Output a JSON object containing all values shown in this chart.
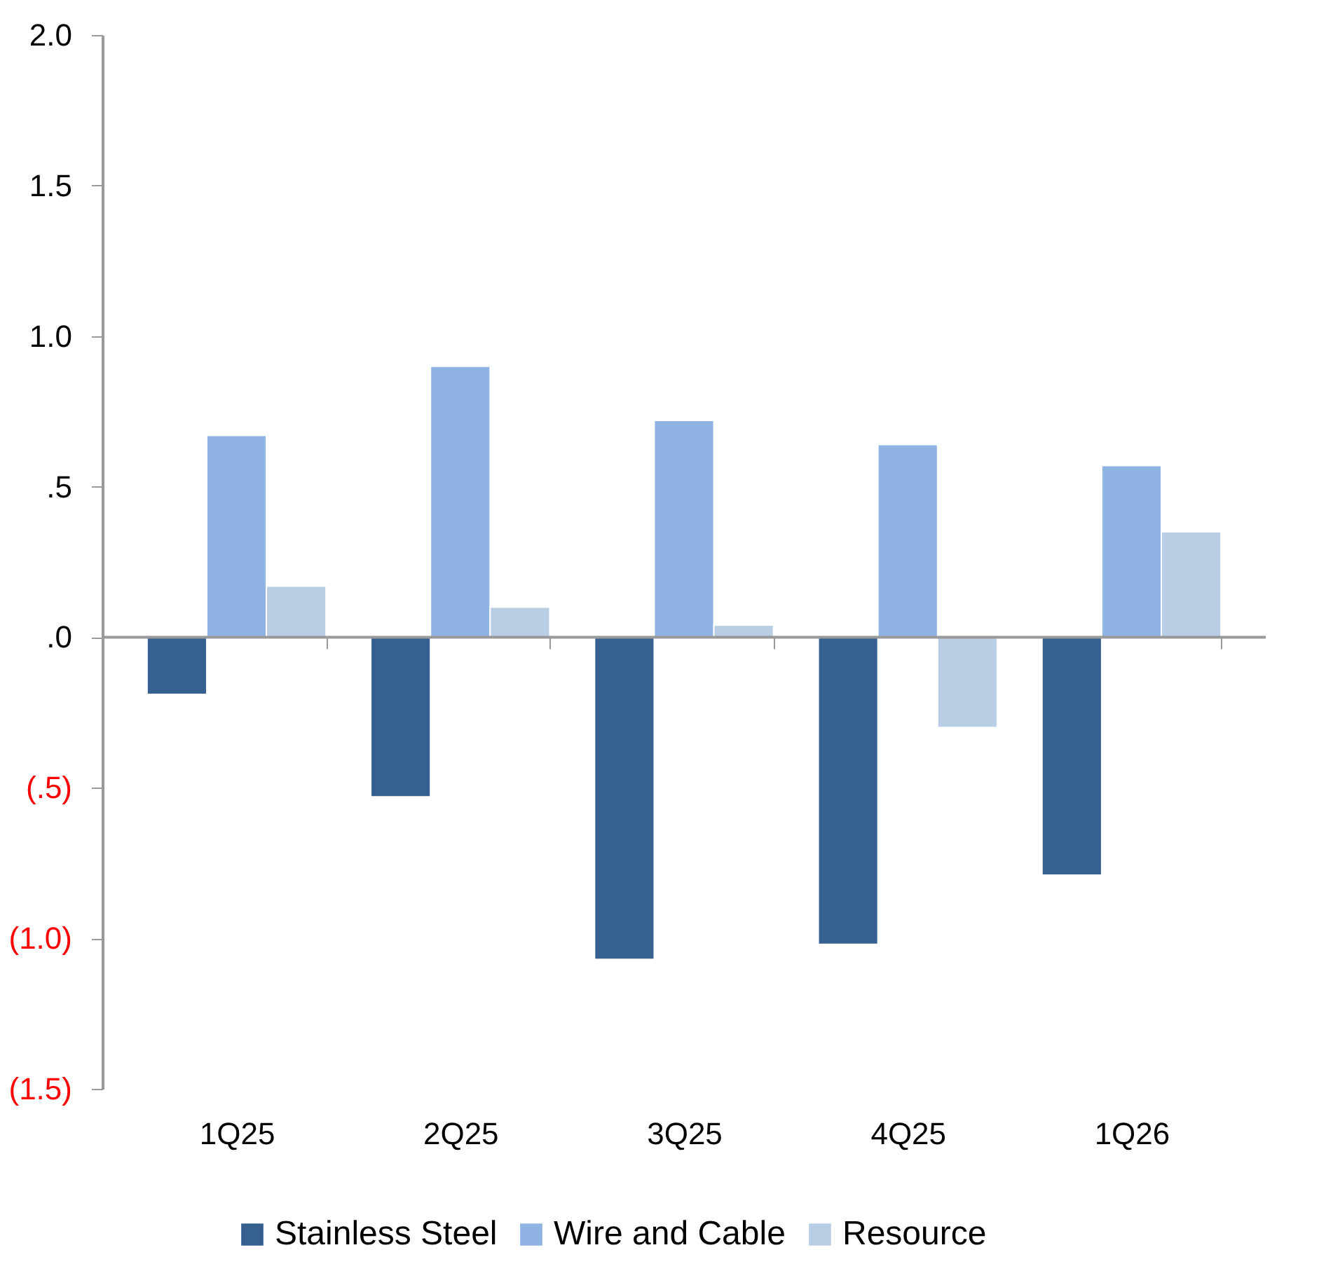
{
  "chart_data": {
    "type": "bar",
    "categories": [
      "1Q25",
      "2Q25",
      "3Q25",
      "4Q25",
      "1Q26"
    ],
    "series": [
      {
        "name": "Stainless Steel",
        "color": "#36608f",
        "values": [
          -0.19,
          -0.53,
          -1.07,
          -1.02,
          -0.79
        ]
      },
      {
        "name": "Wire and Cable",
        "color": "#8fb3e2",
        "values": [
          0.67,
          0.9,
          0.72,
          0.64,
          0.57
        ]
      },
      {
        "name": "Resource",
        "color": "#b9cde5",
        "values": [
          0.17,
          0.1,
          0.04,
          -0.3,
          0.35
        ]
      }
    ],
    "ylim": [
      -1.5,
      2.0
    ],
    "yticks": [
      {
        "value": -1.5,
        "label": "(1.5)"
      },
      {
        "value": -1.0,
        "label": "(1.0)"
      },
      {
        "value": -0.5,
        "label": "(.5)"
      },
      {
        "value": 0,
        "label": ".0"
      },
      {
        "value": 0.5,
        "label": ".5"
      },
      {
        "value": 1.0,
        "label": "1.0"
      },
      {
        "value": 1.5,
        "label": "1.5"
      },
      {
        "value": 2.0,
        "label": "2.0"
      }
    ],
    "ref_lines": [
      {
        "axis": "y",
        "value": 0,
        "color": "#999999"
      }
    ],
    "grid": false,
    "legend": "bottom"
  }
}
